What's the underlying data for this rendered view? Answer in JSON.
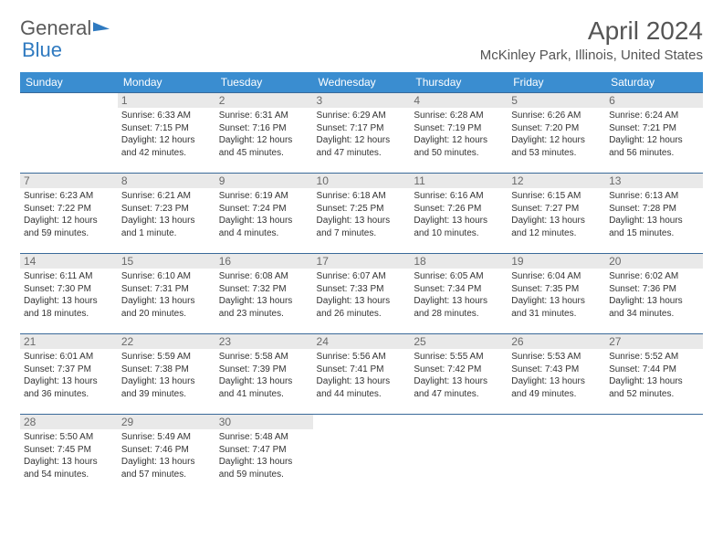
{
  "logo": {
    "part1": "General",
    "part2": "Blue"
  },
  "title": "April 2024",
  "location": "McKinley Park, Illinois, United States",
  "colors": {
    "header_bg": "#3a8dd0",
    "header_text": "#ffffff",
    "daynum_bg": "#e9e9e9",
    "border": "#3a6a9a",
    "body_text": "#333333",
    "logo_gray": "#5a5a5a",
    "logo_blue": "#2f7ac0"
  },
  "weekdays": [
    "Sunday",
    "Monday",
    "Tuesday",
    "Wednesday",
    "Thursday",
    "Friday",
    "Saturday"
  ],
  "weeks": [
    [
      null,
      {
        "d": "1",
        "sr": "6:33 AM",
        "ss": "7:15 PM",
        "dl": "12 hours and 42 minutes."
      },
      {
        "d": "2",
        "sr": "6:31 AM",
        "ss": "7:16 PM",
        "dl": "12 hours and 45 minutes."
      },
      {
        "d": "3",
        "sr": "6:29 AM",
        "ss": "7:17 PM",
        "dl": "12 hours and 47 minutes."
      },
      {
        "d": "4",
        "sr": "6:28 AM",
        "ss": "7:19 PM",
        "dl": "12 hours and 50 minutes."
      },
      {
        "d": "5",
        "sr": "6:26 AM",
        "ss": "7:20 PM",
        "dl": "12 hours and 53 minutes."
      },
      {
        "d": "6",
        "sr": "6:24 AM",
        "ss": "7:21 PM",
        "dl": "12 hours and 56 minutes."
      }
    ],
    [
      {
        "d": "7",
        "sr": "6:23 AM",
        "ss": "7:22 PM",
        "dl": "12 hours and 59 minutes."
      },
      {
        "d": "8",
        "sr": "6:21 AM",
        "ss": "7:23 PM",
        "dl": "13 hours and 1 minute."
      },
      {
        "d": "9",
        "sr": "6:19 AM",
        "ss": "7:24 PM",
        "dl": "13 hours and 4 minutes."
      },
      {
        "d": "10",
        "sr": "6:18 AM",
        "ss": "7:25 PM",
        "dl": "13 hours and 7 minutes."
      },
      {
        "d": "11",
        "sr": "6:16 AM",
        "ss": "7:26 PM",
        "dl": "13 hours and 10 minutes."
      },
      {
        "d": "12",
        "sr": "6:15 AM",
        "ss": "7:27 PM",
        "dl": "13 hours and 12 minutes."
      },
      {
        "d": "13",
        "sr": "6:13 AM",
        "ss": "7:28 PM",
        "dl": "13 hours and 15 minutes."
      }
    ],
    [
      {
        "d": "14",
        "sr": "6:11 AM",
        "ss": "7:30 PM",
        "dl": "13 hours and 18 minutes."
      },
      {
        "d": "15",
        "sr": "6:10 AM",
        "ss": "7:31 PM",
        "dl": "13 hours and 20 minutes."
      },
      {
        "d": "16",
        "sr": "6:08 AM",
        "ss": "7:32 PM",
        "dl": "13 hours and 23 minutes."
      },
      {
        "d": "17",
        "sr": "6:07 AM",
        "ss": "7:33 PM",
        "dl": "13 hours and 26 minutes."
      },
      {
        "d": "18",
        "sr": "6:05 AM",
        "ss": "7:34 PM",
        "dl": "13 hours and 28 minutes."
      },
      {
        "d": "19",
        "sr": "6:04 AM",
        "ss": "7:35 PM",
        "dl": "13 hours and 31 minutes."
      },
      {
        "d": "20",
        "sr": "6:02 AM",
        "ss": "7:36 PM",
        "dl": "13 hours and 34 minutes."
      }
    ],
    [
      {
        "d": "21",
        "sr": "6:01 AM",
        "ss": "7:37 PM",
        "dl": "13 hours and 36 minutes."
      },
      {
        "d": "22",
        "sr": "5:59 AM",
        "ss": "7:38 PM",
        "dl": "13 hours and 39 minutes."
      },
      {
        "d": "23",
        "sr": "5:58 AM",
        "ss": "7:39 PM",
        "dl": "13 hours and 41 minutes."
      },
      {
        "d": "24",
        "sr": "5:56 AM",
        "ss": "7:41 PM",
        "dl": "13 hours and 44 minutes."
      },
      {
        "d": "25",
        "sr": "5:55 AM",
        "ss": "7:42 PM",
        "dl": "13 hours and 47 minutes."
      },
      {
        "d": "26",
        "sr": "5:53 AM",
        "ss": "7:43 PM",
        "dl": "13 hours and 49 minutes."
      },
      {
        "d": "27",
        "sr": "5:52 AM",
        "ss": "7:44 PM",
        "dl": "13 hours and 52 minutes."
      }
    ],
    [
      {
        "d": "28",
        "sr": "5:50 AM",
        "ss": "7:45 PM",
        "dl": "13 hours and 54 minutes."
      },
      {
        "d": "29",
        "sr": "5:49 AM",
        "ss": "7:46 PM",
        "dl": "13 hours and 57 minutes."
      },
      {
        "d": "30",
        "sr": "5:48 AM",
        "ss": "7:47 PM",
        "dl": "13 hours and 59 minutes."
      },
      null,
      null,
      null,
      null
    ]
  ],
  "labels": {
    "sunrise": "Sunrise:",
    "sunset": "Sunset:",
    "daylight": "Daylight:"
  }
}
